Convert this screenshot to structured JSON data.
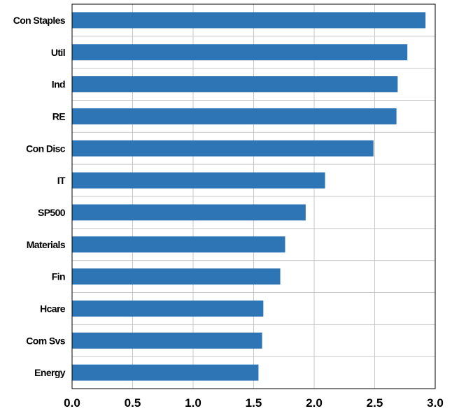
{
  "chart_data": {
    "type": "bar",
    "orientation": "horizontal",
    "categories": [
      "Con Staples",
      "Util",
      "Ind",
      "RE",
      "Con Disc",
      "IT",
      "SP500",
      "Materials",
      "Fin",
      "Hcare",
      "Com Svs",
      "Energy"
    ],
    "values": [
      2.92,
      2.77,
      2.69,
      2.68,
      2.49,
      2.09,
      1.93,
      1.76,
      1.72,
      1.58,
      1.57,
      1.54
    ],
    "xlim": [
      0,
      3.0
    ],
    "xticks": [
      "0.0",
      "0.5",
      "1.0",
      "1.5",
      "2.0",
      "2.5",
      "3.0"
    ],
    "title": "",
    "xlabel": "",
    "ylabel": "",
    "grid": "vertical",
    "legend": "none",
    "bar_color": "#2e75b6",
    "grid_color": "#c8c8c8",
    "frame_color": "#000000"
  }
}
